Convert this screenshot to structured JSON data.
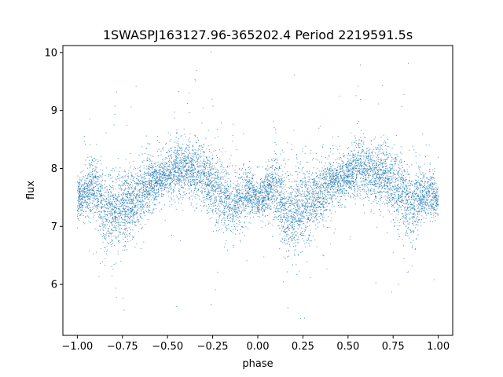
{
  "chart_data": {
    "type": "scatter",
    "title": "1SWASPJ163127.96-365202.4 Period 2219591.5s",
    "xlabel": "phase",
    "ylabel": "flux",
    "xlim": [
      -1.08,
      1.08
    ],
    "ylim": [
      5.12,
      10.12
    ],
    "xticks": [
      -1.0,
      -0.75,
      -0.5,
      -0.25,
      0.0,
      0.25,
      0.5,
      0.75,
      1.0
    ],
    "xtick_labels": [
      "−1.00",
      "−0.75",
      "−0.50",
      "−0.25",
      "0.00",
      "0.25",
      "0.50",
      "0.75",
      "1.00"
    ],
    "yticks": [
      6,
      7,
      8,
      9,
      10
    ],
    "ytick_labels": [
      "6",
      "7",
      "8",
      "9",
      "10"
    ],
    "grid": false,
    "marker_color": "#1f77b4",
    "envelope": {
      "description_values": "approximate mean flux versus phase, repeated with period 1 in phase",
      "phase": [
        -1.0,
        -0.95,
        -0.9,
        -0.85,
        -0.8,
        -0.75,
        -0.7,
        -0.65,
        -0.6,
        -0.55,
        -0.5,
        -0.45,
        -0.4,
        -0.35,
        -0.3,
        -0.25,
        -0.2,
        -0.15,
        -0.1,
        -0.05,
        0.0
      ],
      "mean_flux": [
        7.45,
        7.6,
        7.75,
        7.25,
        7.2,
        7.35,
        7.4,
        7.55,
        7.75,
        7.8,
        7.9,
        8.0,
        8.0,
        7.95,
        7.9,
        7.75,
        7.55,
        7.35,
        7.5,
        7.6,
        7.45
      ],
      "spread": [
        0.15,
        0.2,
        0.3,
        0.35,
        0.35,
        0.35,
        0.3,
        0.25,
        0.25,
        0.2,
        0.2,
        0.25,
        0.25,
        0.25,
        0.25,
        0.3,
        0.3,
        0.3,
        0.25,
        0.2,
        0.15
      ]
    },
    "n_points": 9000
  }
}
